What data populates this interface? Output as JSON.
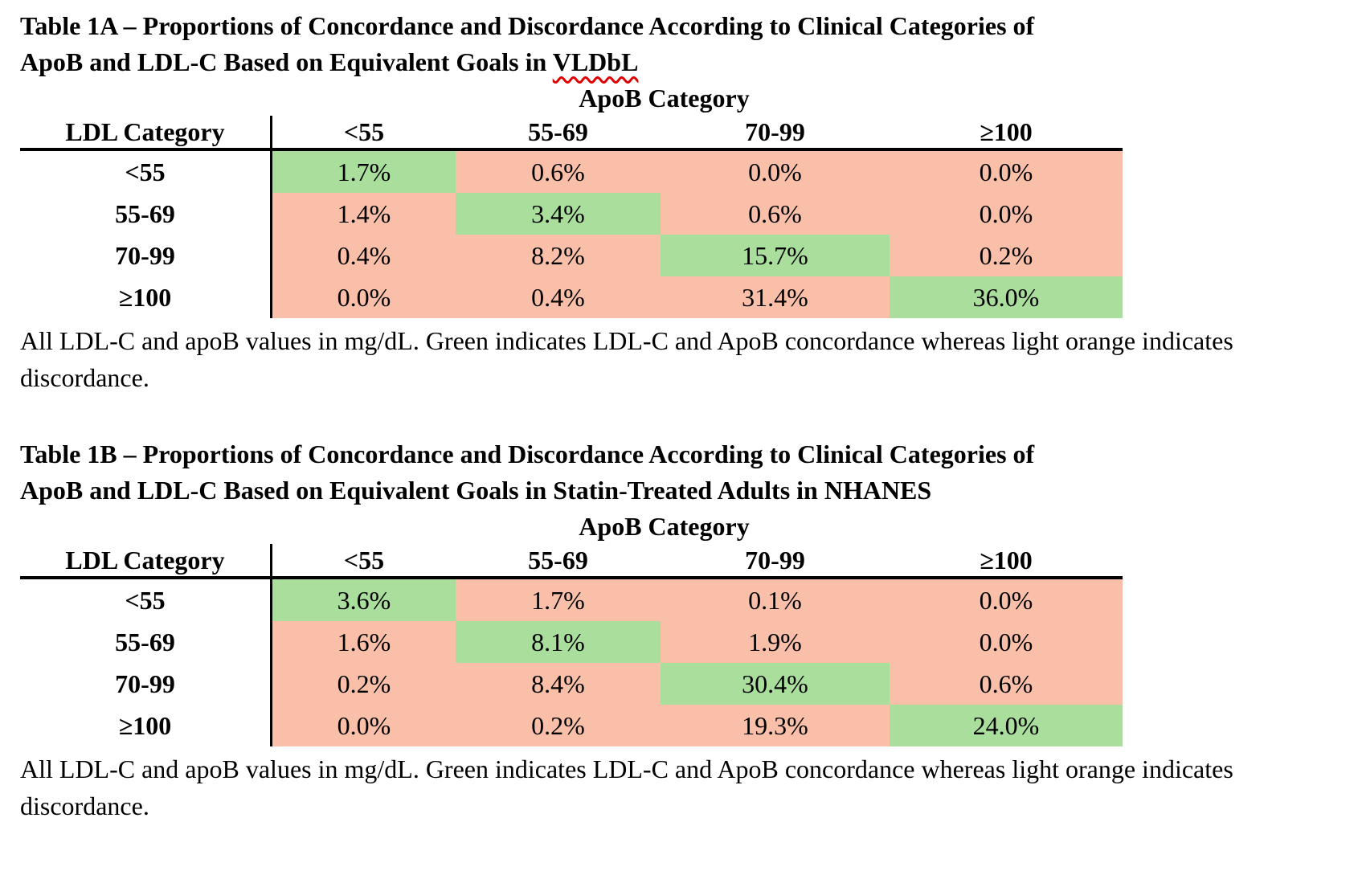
{
  "colors": {
    "concordance_green": "#a9de9c",
    "discordance_orange": "#f9bfa8",
    "spellcheck_red": "#e00000"
  },
  "tables": [
    {
      "name": "Table 1A",
      "title_line1": "Table 1A – Proportions of Concordance and Discordance According to Clinical Categories of",
      "title_line2_pre": "ApoB and LDL-C Based on Equivalent Goals in ",
      "title_line2_flagged": "VLDbL",
      "col_group_header": "ApoB Category",
      "row_header": "LDL Category",
      "col_headers": [
        "<55",
        "55-69",
        "70-99",
        "≥100"
      ],
      "rows": [
        {
          "label": "<55",
          "values": [
            "1.7%",
            "0.6%",
            "0.0%",
            "0.0%"
          ],
          "concordant_col": 0
        },
        {
          "label": "55-69",
          "values": [
            "1.4%",
            "3.4%",
            "0.6%",
            "0.0%"
          ],
          "concordant_col": 1
        },
        {
          "label": "70-99",
          "values": [
            "0.4%",
            "8.2%",
            "15.7%",
            "0.2%"
          ],
          "concordant_col": 2
        },
        {
          "label": "≥100",
          "values": [
            "0.0%",
            "0.4%",
            "31.4%",
            "36.0%"
          ],
          "concordant_col": 3
        }
      ],
      "footnote": "All LDL-C and apoB values in mg/dL. Green indicates LDL-C and ApoB concordance whereas light orange indicates discordance."
    },
    {
      "name": "Table 1B",
      "title_line1": "Table 1B – Proportions of Concordance and Discordance According to Clinical Categories of",
      "title_line2": "ApoB and LDL-C Based on Equivalent Goals in Statin-Treated Adults in NHANES",
      "col_group_header": "ApoB Category",
      "row_header": "LDL Category",
      "col_headers": [
        "<55",
        "55-69",
        "70-99",
        "≥100"
      ],
      "rows": [
        {
          "label": "<55",
          "values": [
            "3.6%",
            "1.7%",
            "0.1%",
            "0.0%"
          ],
          "concordant_col": 0
        },
        {
          "label": "55-69",
          "values": [
            "1.6%",
            "8.1%",
            "1.9%",
            "0.0%"
          ],
          "concordant_col": 1
        },
        {
          "label": "70-99",
          "values": [
            "0.2%",
            "8.4%",
            "30.4%",
            "0.6%"
          ],
          "concordant_col": 2
        },
        {
          "label": "≥100",
          "values": [
            "0.0%",
            "0.2%",
            "19.3%",
            "24.0%"
          ],
          "concordant_col": 3
        }
      ],
      "footnote": "All LDL-C and apoB values in mg/dL. Green indicates LDL-C and ApoB concordance whereas light orange indicates discordance."
    }
  ]
}
